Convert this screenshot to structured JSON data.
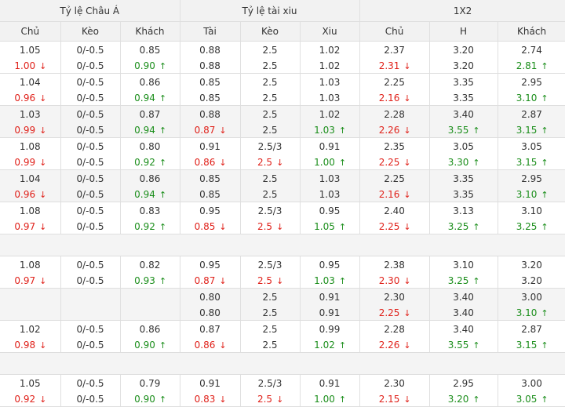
{
  "header": {
    "groups": [
      "Tỷ lệ Châu Á",
      "Tỷ lệ tài xiu",
      "1X2"
    ],
    "columns": [
      "Chủ",
      "Kèo",
      "Khách",
      "Tài",
      "Kèo",
      "Xiu",
      "Chủ",
      "H",
      "Khách"
    ]
  },
  "colors": {
    "down": "#e0211a",
    "up": "#1b8e1b",
    "header_bg": "#f2f2f2",
    "alt_bg": "#f4f4f4"
  },
  "icons": {
    "down": "arrow-down-icon",
    "up": "arrow-up-icon"
  },
  "rows": [
    {
      "blank": false,
      "shade": "white",
      "top": [
        "1.05",
        "0/-0.5",
        "0.85",
        "0.88",
        "2.5",
        "1.02",
        "2.37",
        "3.20",
        "2.74"
      ],
      "bot": [
        {
          "v": "1.00",
          "d": "down"
        },
        {
          "v": "0/-0.5",
          "d": ""
        },
        {
          "v": "0.90",
          "d": "up"
        },
        {
          "v": "0.88",
          "d": ""
        },
        {
          "v": "2.5",
          "d": ""
        },
        {
          "v": "1.02",
          "d": ""
        },
        {
          "v": "2.31",
          "d": "down"
        },
        {
          "v": "3.20",
          "d": ""
        },
        {
          "v": "2.81",
          "d": "up"
        }
      ]
    },
    {
      "blank": false,
      "shade": "white",
      "top": [
        "1.04",
        "0/-0.5",
        "0.86",
        "0.85",
        "2.5",
        "1.03",
        "2.25",
        "3.35",
        "2.95"
      ],
      "bot": [
        {
          "v": "0.96",
          "d": "down"
        },
        {
          "v": "0/-0.5",
          "d": ""
        },
        {
          "v": "0.94",
          "d": "up"
        },
        {
          "v": "0.85",
          "d": ""
        },
        {
          "v": "2.5",
          "d": ""
        },
        {
          "v": "1.03",
          "d": ""
        },
        {
          "v": "2.16",
          "d": "down"
        },
        {
          "v": "3.35",
          "d": ""
        },
        {
          "v": "3.10",
          "d": "up"
        }
      ]
    },
    {
      "blank": false,
      "shade": "gray",
      "top": [
        "1.03",
        "0/-0.5",
        "0.87",
        "0.88",
        "2.5",
        "1.02",
        "2.28",
        "3.40",
        "2.87"
      ],
      "bot": [
        {
          "v": "0.99",
          "d": "down"
        },
        {
          "v": "0/-0.5",
          "d": ""
        },
        {
          "v": "0.94",
          "d": "up"
        },
        {
          "v": "0.87",
          "d": "down"
        },
        {
          "v": "2.5",
          "d": ""
        },
        {
          "v": "1.03",
          "d": "up"
        },
        {
          "v": "2.26",
          "d": "down"
        },
        {
          "v": "3.55",
          "d": "up"
        },
        {
          "v": "3.15",
          "d": "up"
        }
      ]
    },
    {
      "blank": false,
      "shade": "white",
      "top": [
        "1.08",
        "0/-0.5",
        "0.80",
        "0.91",
        "2.5/3",
        "0.91",
        "2.35",
        "3.05",
        "3.05"
      ],
      "bot": [
        {
          "v": "0.99",
          "d": "down"
        },
        {
          "v": "0/-0.5",
          "d": ""
        },
        {
          "v": "0.92",
          "d": "up"
        },
        {
          "v": "0.86",
          "d": "down"
        },
        {
          "v": "2.5",
          "d": "down"
        },
        {
          "v": "1.00",
          "d": "up"
        },
        {
          "v": "2.25",
          "d": "down"
        },
        {
          "v": "3.30",
          "d": "up"
        },
        {
          "v": "3.15",
          "d": "up"
        }
      ]
    },
    {
      "blank": false,
      "shade": "gray",
      "top": [
        "1.04",
        "0/-0.5",
        "0.86",
        "0.85",
        "2.5",
        "1.03",
        "2.25",
        "3.35",
        "2.95"
      ],
      "bot": [
        {
          "v": "0.96",
          "d": "down"
        },
        {
          "v": "0/-0.5",
          "d": ""
        },
        {
          "v": "0.94",
          "d": "up"
        },
        {
          "v": "0.85",
          "d": ""
        },
        {
          "v": "2.5",
          "d": ""
        },
        {
          "v": "1.03",
          "d": ""
        },
        {
          "v": "2.16",
          "d": "down"
        },
        {
          "v": "3.35",
          "d": ""
        },
        {
          "v": "3.10",
          "d": "up"
        }
      ]
    },
    {
      "blank": false,
      "shade": "white",
      "top": [
        "1.08",
        "0/-0.5",
        "0.83",
        "0.95",
        "2.5/3",
        "0.95",
        "2.40",
        "3.13",
        "3.10"
      ],
      "bot": [
        {
          "v": "0.97",
          "d": "down"
        },
        {
          "v": "0/-0.5",
          "d": ""
        },
        {
          "v": "0.92",
          "d": "up"
        },
        {
          "v": "0.85",
          "d": "down"
        },
        {
          "v": "2.5",
          "d": "down"
        },
        {
          "v": "1.05",
          "d": "up"
        },
        {
          "v": "2.25",
          "d": "down"
        },
        {
          "v": "3.25",
          "d": "up"
        },
        {
          "v": "3.25",
          "d": "up"
        }
      ]
    },
    {
      "blank": true
    },
    {
      "blank": false,
      "shade": "white",
      "top": [
        "1.08",
        "0/-0.5",
        "0.82",
        "0.95",
        "2.5/3",
        "0.95",
        "2.38",
        "3.10",
        "3.20"
      ],
      "bot": [
        {
          "v": "0.97",
          "d": "down"
        },
        {
          "v": "0/-0.5",
          "d": ""
        },
        {
          "v": "0.93",
          "d": "up"
        },
        {
          "v": "0.87",
          "d": "down"
        },
        {
          "v": "2.5",
          "d": "down"
        },
        {
          "v": "1.03",
          "d": "up"
        },
        {
          "v": "2.30",
          "d": "down"
        },
        {
          "v": "3.25",
          "d": "up"
        },
        {
          "v": "3.20",
          "d": ""
        }
      ]
    },
    {
      "blank": false,
      "shade": "gray",
      "top": [
        "",
        "",
        "",
        "0.80",
        "2.5",
        "0.91",
        "2.30",
        "3.40",
        "3.00"
      ],
      "bot": [
        {
          "v": "",
          "d": ""
        },
        {
          "v": "",
          "d": ""
        },
        {
          "v": "",
          "d": ""
        },
        {
          "v": "0.80",
          "d": ""
        },
        {
          "v": "2.5",
          "d": ""
        },
        {
          "v": "0.91",
          "d": ""
        },
        {
          "v": "2.25",
          "d": "down"
        },
        {
          "v": "3.40",
          "d": ""
        },
        {
          "v": "3.10",
          "d": "up"
        }
      ]
    },
    {
      "blank": false,
      "shade": "white",
      "top": [
        "1.02",
        "0/-0.5",
        "0.86",
        "0.87",
        "2.5",
        "0.99",
        "2.28",
        "3.40",
        "2.87"
      ],
      "bot": [
        {
          "v": "0.98",
          "d": "down"
        },
        {
          "v": "0/-0.5",
          "d": ""
        },
        {
          "v": "0.90",
          "d": "up"
        },
        {
          "v": "0.86",
          "d": "down"
        },
        {
          "v": "2.5",
          "d": ""
        },
        {
          "v": "1.02",
          "d": "up"
        },
        {
          "v": "2.26",
          "d": "down"
        },
        {
          "v": "3.55",
          "d": "up"
        },
        {
          "v": "3.15",
          "d": "up"
        }
      ]
    },
    {
      "blank": true
    },
    {
      "blank": false,
      "shade": "white",
      "top": [
        "1.05",
        "0/-0.5",
        "0.79",
        "0.91",
        "2.5/3",
        "0.91",
        "2.30",
        "2.95",
        "3.00"
      ],
      "bot": [
        {
          "v": "0.92",
          "d": "down"
        },
        {
          "v": "0/-0.5",
          "d": ""
        },
        {
          "v": "0.90",
          "d": "up"
        },
        {
          "v": "0.83",
          "d": "down"
        },
        {
          "v": "2.5",
          "d": "down"
        },
        {
          "v": "1.00",
          "d": "up"
        },
        {
          "v": "2.15",
          "d": "down"
        },
        {
          "v": "3.20",
          "d": "up"
        },
        {
          "v": "3.05",
          "d": "up"
        }
      ]
    }
  ]
}
